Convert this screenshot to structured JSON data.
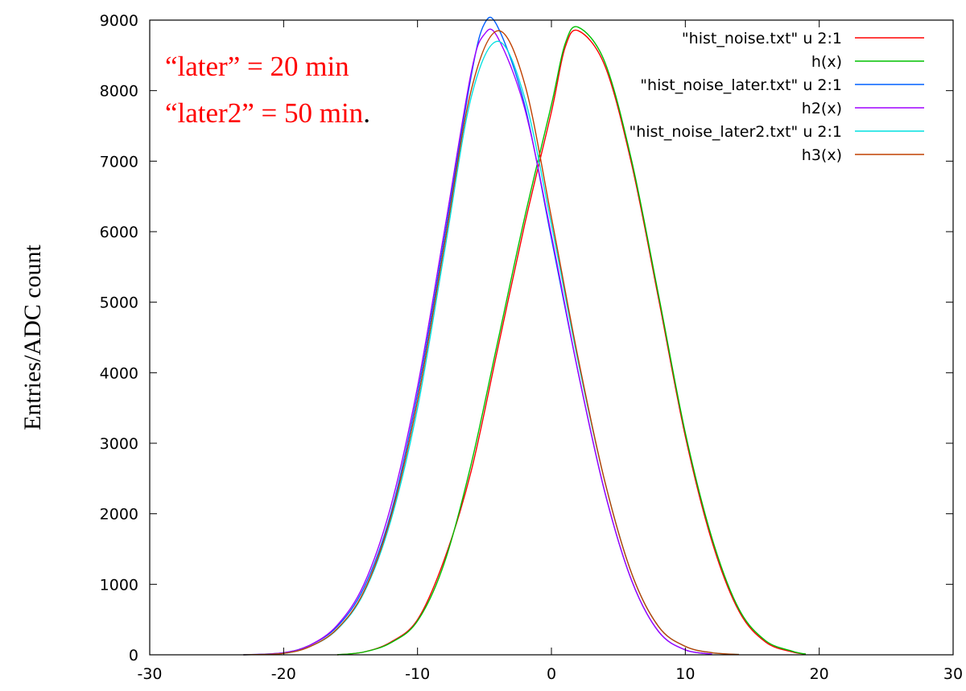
{
  "chart_data": {
    "type": "line",
    "title": "",
    "xlabel": "",
    "ylabel": "Entries/ADC count",
    "xlim": [
      -30,
      30
    ],
    "ylim": [
      0,
      9000
    ],
    "xticks": [
      -30,
      -20,
      -10,
      0,
      10,
      20,
      30
    ],
    "yticks": [
      0,
      1000,
      2000,
      3000,
      4000,
      5000,
      6000,
      7000,
      8000,
      9000
    ],
    "grid": false,
    "legend_position": "top-right",
    "annotations": [
      {
        "text": "“later” = 20 min",
        "color": "#ff0000"
      },
      {
        "text": "“later2” = 50 min",
        "color": "#ff0000",
        "suffix": "."
      }
    ],
    "series": [
      {
        "name": "\"hist_noise.txt\" u 2:1",
        "color": "#ff0000",
        "x": [
          -16,
          -14,
          -12,
          -10,
          -8,
          -6,
          -4,
          -2,
          0,
          1,
          2,
          4,
          6,
          8,
          10,
          12,
          14,
          16,
          18,
          19
        ],
        "y": [
          0,
          40,
          180,
          500,
          1350,
          2600,
          4350,
          6100,
          7700,
          8600,
          8850,
          8350,
          6950,
          5050,
          3100,
          1600,
          620,
          180,
          40,
          10
        ]
      },
      {
        "name": "h(x)",
        "color": "#00c000",
        "x": [
          -16,
          -14,
          -12,
          -10,
          -8,
          -6,
          -4,
          -2,
          0,
          1,
          2,
          4,
          6,
          8,
          10,
          12,
          14,
          16,
          18,
          19
        ],
        "y": [
          0,
          40,
          170,
          480,
          1300,
          2700,
          4450,
          6200,
          7800,
          8650,
          8900,
          8400,
          7000,
          5100,
          3150,
          1650,
          650,
          200,
          50,
          10
        ]
      },
      {
        "name": "\"hist_noise_later.txt\" u 2:1",
        "color": "#0060ff",
        "x": [
          -23,
          -20,
          -18,
          -16,
          -14,
          -12,
          -10,
          -8,
          -6,
          -5,
          -4,
          -2,
          0,
          2,
          4,
          6,
          8,
          10,
          12
        ],
        "y": [
          0,
          30,
          140,
          400,
          950,
          2000,
          3700,
          5900,
          8200,
          8950,
          8900,
          7800,
          5900,
          4000,
          2300,
          1050,
          330,
          70,
          10
        ]
      },
      {
        "name": "h2(x)",
        "color": "#a000ff",
        "x": [
          -23,
          -20,
          -18,
          -16,
          -14,
          -12,
          -10,
          -8,
          -6,
          -5,
          -4,
          -2,
          0,
          2,
          4,
          6,
          8,
          10,
          12
        ],
        "y": [
          0,
          30,
          140,
          420,
          1000,
          2100,
          3800,
          6000,
          8250,
          8800,
          8750,
          7750,
          5950,
          4000,
          2300,
          1050,
          330,
          70,
          10
        ]
      },
      {
        "name": "\"hist_noise_later2.txt\" u 2:1",
        "color": "#00e0e0",
        "x": [
          -23,
          -20,
          -18,
          -16,
          -14,
          -12,
          -10,
          -8,
          -6,
          -4,
          -2,
          0,
          2,
          4,
          6,
          8,
          10,
          12,
          14
        ],
        "y": [
          0,
          20,
          120,
          360,
          880,
          1900,
          3500,
          5700,
          7900,
          8700,
          7900,
          6100,
          4150,
          2450,
          1150,
          400,
          120,
          30,
          5
        ]
      },
      {
        "name": "h3(x)",
        "color": "#c04000",
        "x": [
          -23,
          -20,
          -18,
          -16,
          -14,
          -12,
          -10,
          -8,
          -6,
          -4,
          -2,
          0,
          2,
          4,
          6,
          8,
          10,
          12,
          14
        ],
        "y": [
          0,
          20,
          120,
          370,
          900,
          1950,
          3600,
          5800,
          8000,
          8850,
          8100,
          6200,
          4200,
          2450,
          1150,
          400,
          120,
          30,
          5
        ]
      }
    ]
  }
}
